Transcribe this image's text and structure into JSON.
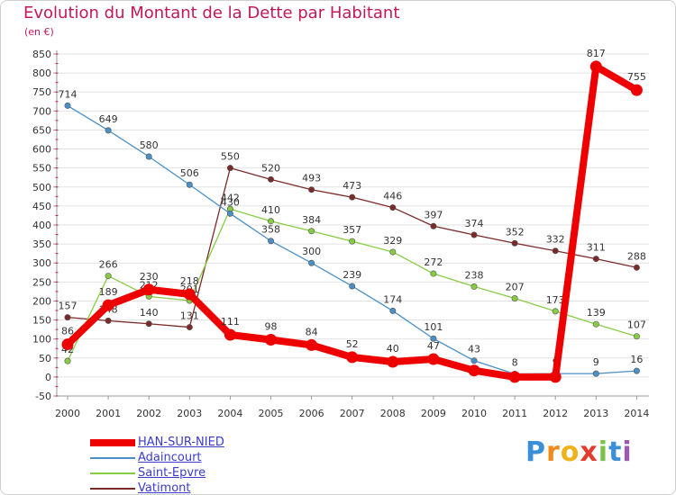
{
  "chart_data": {
    "type": "line",
    "title": "Evolution du Montant de la Dette par Habitant",
    "unit_label": "(en €)",
    "xlabel": "",
    "ylabel": "",
    "ylim": [
      -50,
      850
    ],
    "y_ticks": [
      -50,
      0,
      50,
      100,
      150,
      200,
      250,
      300,
      350,
      400,
      450,
      500,
      550,
      600,
      650,
      700,
      750,
      800,
      850
    ],
    "categories": [
      "2000",
      "2001",
      "2002",
      "2003",
      "2004",
      "2005",
      "2006",
      "2007",
      "2008",
      "2009",
      "2010",
      "2011",
      "2012",
      "2013",
      "2014"
    ],
    "series": [
      {
        "name": "Vatimont",
        "color": "#7b2a2a",
        "values": [
          157,
          148,
          140,
          131,
          550,
          520,
          493,
          473,
          446,
          397,
          374,
          352,
          332,
          311,
          288
        ],
        "labels": [
          "157",
          "148",
          "140",
          "131",
          "550",
          "520",
          "493",
          "473",
          "446",
          "397",
          "374",
          "352",
          "332",
          "311",
          "288"
        ]
      },
      {
        "name": "Saint-Epvre",
        "color": "#88cc44",
        "values": [
          42,
          266,
          212,
          201,
          442,
          410,
          384,
          357,
          329,
          272,
          238,
          207,
          173,
          139,
          107
        ],
        "labels": [
          "42",
          "266",
          "212",
          "201",
          "442",
          "410",
          "384",
          "357",
          "329",
          "272",
          "238",
          "207",
          "173",
          "139",
          "107"
        ]
      },
      {
        "name": "Adaincourt",
        "color": "#4a8fc6",
        "values": [
          714,
          649,
          580,
          506,
          430,
          358,
          300,
          239,
          174,
          101,
          43,
          8,
          9,
          9,
          16
        ],
        "labels": [
          "714",
          "649",
          "580",
          "506",
          "430",
          "358",
          "300",
          "239",
          "174",
          "101",
          "43",
          "8",
          "9",
          "9",
          "16"
        ]
      },
      {
        "name": "HAN-SUR-NIED",
        "color": "#ee0000",
        "values": [
          86,
          189,
          230,
          218,
          111,
          98,
          84,
          52,
          40,
          47,
          17,
          0,
          0,
          817,
          755
        ],
        "labels": [
          "86",
          "189",
          "230",
          "218",
          "111",
          "98",
          "84",
          "52",
          "40",
          "47",
          "",
          "",
          "",
          "817",
          "755"
        ]
      }
    ]
  },
  "legend": [
    {
      "label": "HAN-SUR-NIED",
      "color": "#ee0000",
      "thick": true
    },
    {
      "label": "Adaincourt",
      "color": "#4a8fc6",
      "thick": false
    },
    {
      "label": "Saint-Epvre",
      "color": "#88cc44",
      "thick": false
    },
    {
      "label": "Vatimont",
      "color": "#7b2a2a",
      "thick": false
    }
  ],
  "logo": {
    "letters": [
      "P",
      "r",
      "o",
      "x",
      "i",
      "t",
      "i"
    ],
    "colors": [
      "#3a8fd8",
      "#f08a1c",
      "#f0b21c",
      "#e23c2c",
      "#7cc24a",
      "#3a8fd8",
      "#9b59b6"
    ]
  }
}
